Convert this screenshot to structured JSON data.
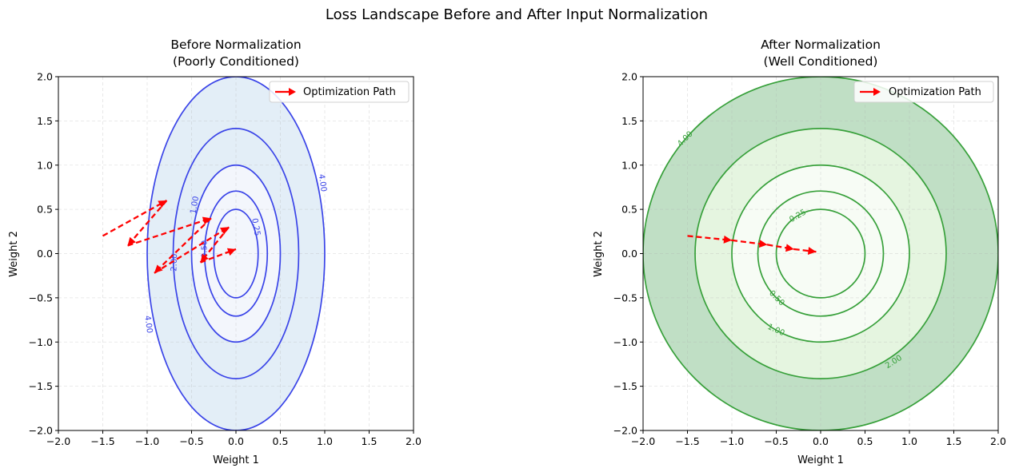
{
  "figure": {
    "suptitle": "Loss Landscape Before and After Input Normalization"
  },
  "chart_data": [
    {
      "type": "contour",
      "title_line1": "Before Normalization",
      "title_line2": "(Poorly Conditioned)",
      "xlabel": "Weight 1",
      "ylabel": "Weight 2",
      "xlim": [
        -2,
        2
      ],
      "ylim": [
        -2,
        2
      ],
      "xticks": [
        "−2.0",
        "−1.5",
        "−1.0",
        "−0.5",
        "0.0",
        "0.5",
        "1.0",
        "1.5",
        "2.0"
      ],
      "yticks": [
        "−2.0",
        "−1.5",
        "−1.0",
        "−0.5",
        "0.0",
        "0.5",
        "1.0",
        "1.5",
        "2.0"
      ],
      "grid": true,
      "legend_position": "top-right",
      "legend_label": "Optimization Path",
      "loss_function": "4*w1^2 + w2^2",
      "filled_levels": [
        0,
        1,
        4
      ],
      "fill_colors": [
        "#f3f6fc",
        "#e3eef7",
        "#bcd5ea"
      ],
      "contour_levels": [
        0.25,
        0.5,
        1,
        2,
        4
      ],
      "contour_color": "#3a44e8",
      "contour_labels": [
        {
          "text": "0.25",
          "w1": 0.23,
          "w2": 0.3,
          "angle": 80
        },
        {
          "text": "0.50",
          "w1": -0.36,
          "w2": 0.05,
          "angle": -90
        },
        {
          "text": "1.00",
          "w1": -0.47,
          "w2": 0.55,
          "angle": -80
        },
        {
          "text": "2.00",
          "w1": -0.7,
          "w2": -0.1,
          "angle": -88
        },
        {
          "text": "4.00",
          "w1": 0.98,
          "w2": 0.8,
          "angle": 82
        },
        {
          "text": "4.00",
          "w1": -0.98,
          "w2": -0.8,
          "angle": 82
        }
      ],
      "path_color": "#ff0000",
      "path": [
        [
          -1.5,
          0.2
        ],
        [
          -0.78,
          0.6
        ],
        [
          -1.22,
          0.09
        ],
        [
          -0.28,
          0.4
        ],
        [
          -0.92,
          -0.22
        ],
        [
          -0.08,
          0.3
        ],
        [
          -0.4,
          -0.1
        ],
        [
          0.0,
          0.05
        ]
      ]
    },
    {
      "type": "contour",
      "title_line1": "After Normalization",
      "title_line2": "(Well Conditioned)",
      "xlabel": "Weight 1",
      "ylabel": "Weight 2",
      "xlim": [
        -2,
        2
      ],
      "ylim": [
        -2,
        2
      ],
      "xticks": [
        "−2.0",
        "−1.5",
        "−1.0",
        "−0.5",
        "0.0",
        "0.5",
        "1.0",
        "1.5",
        "2.0"
      ],
      "yticks": [
        "−2.0",
        "−1.5",
        "−1.0",
        "−0.5",
        "0.0",
        "0.5",
        "1.0",
        "1.5",
        "2.0"
      ],
      "grid": true,
      "legend_position": "top-right",
      "legend_label": "Optimization Path",
      "loss_function": "w1^2 + w2^2",
      "filled_levels": [
        0,
        1,
        2,
        4
      ],
      "fill_colors": [
        "#f7fcf5",
        "#e5f5e0",
        "#c0dfc5"
      ],
      "contour_levels": [
        0.25,
        0.5,
        1,
        2,
        4
      ],
      "contour_color": "#37a03a",
      "contour_labels": [
        {
          "text": "0.25",
          "w1": -0.26,
          "w2": 0.43,
          "angle": -30
        },
        {
          "text": "0.50",
          "w1": -0.49,
          "w2": -0.5,
          "angle": 45
        },
        {
          "text": "1.00",
          "w1": -0.5,
          "w2": -0.86,
          "angle": 25
        },
        {
          "text": "2.00",
          "w1": 0.82,
          "w2": -1.22,
          "angle": -32
        },
        {
          "text": "4.00",
          "w1": -1.53,
          "w2": 1.3,
          "angle": -45
        }
      ],
      "path_color": "#ff0000",
      "path": [
        [
          -1.5,
          0.2
        ],
        [
          -1.0,
          0.15
        ],
        [
          -0.6,
          0.1
        ],
        [
          -0.3,
          0.05
        ],
        [
          -0.05,
          0.02
        ]
      ]
    }
  ]
}
